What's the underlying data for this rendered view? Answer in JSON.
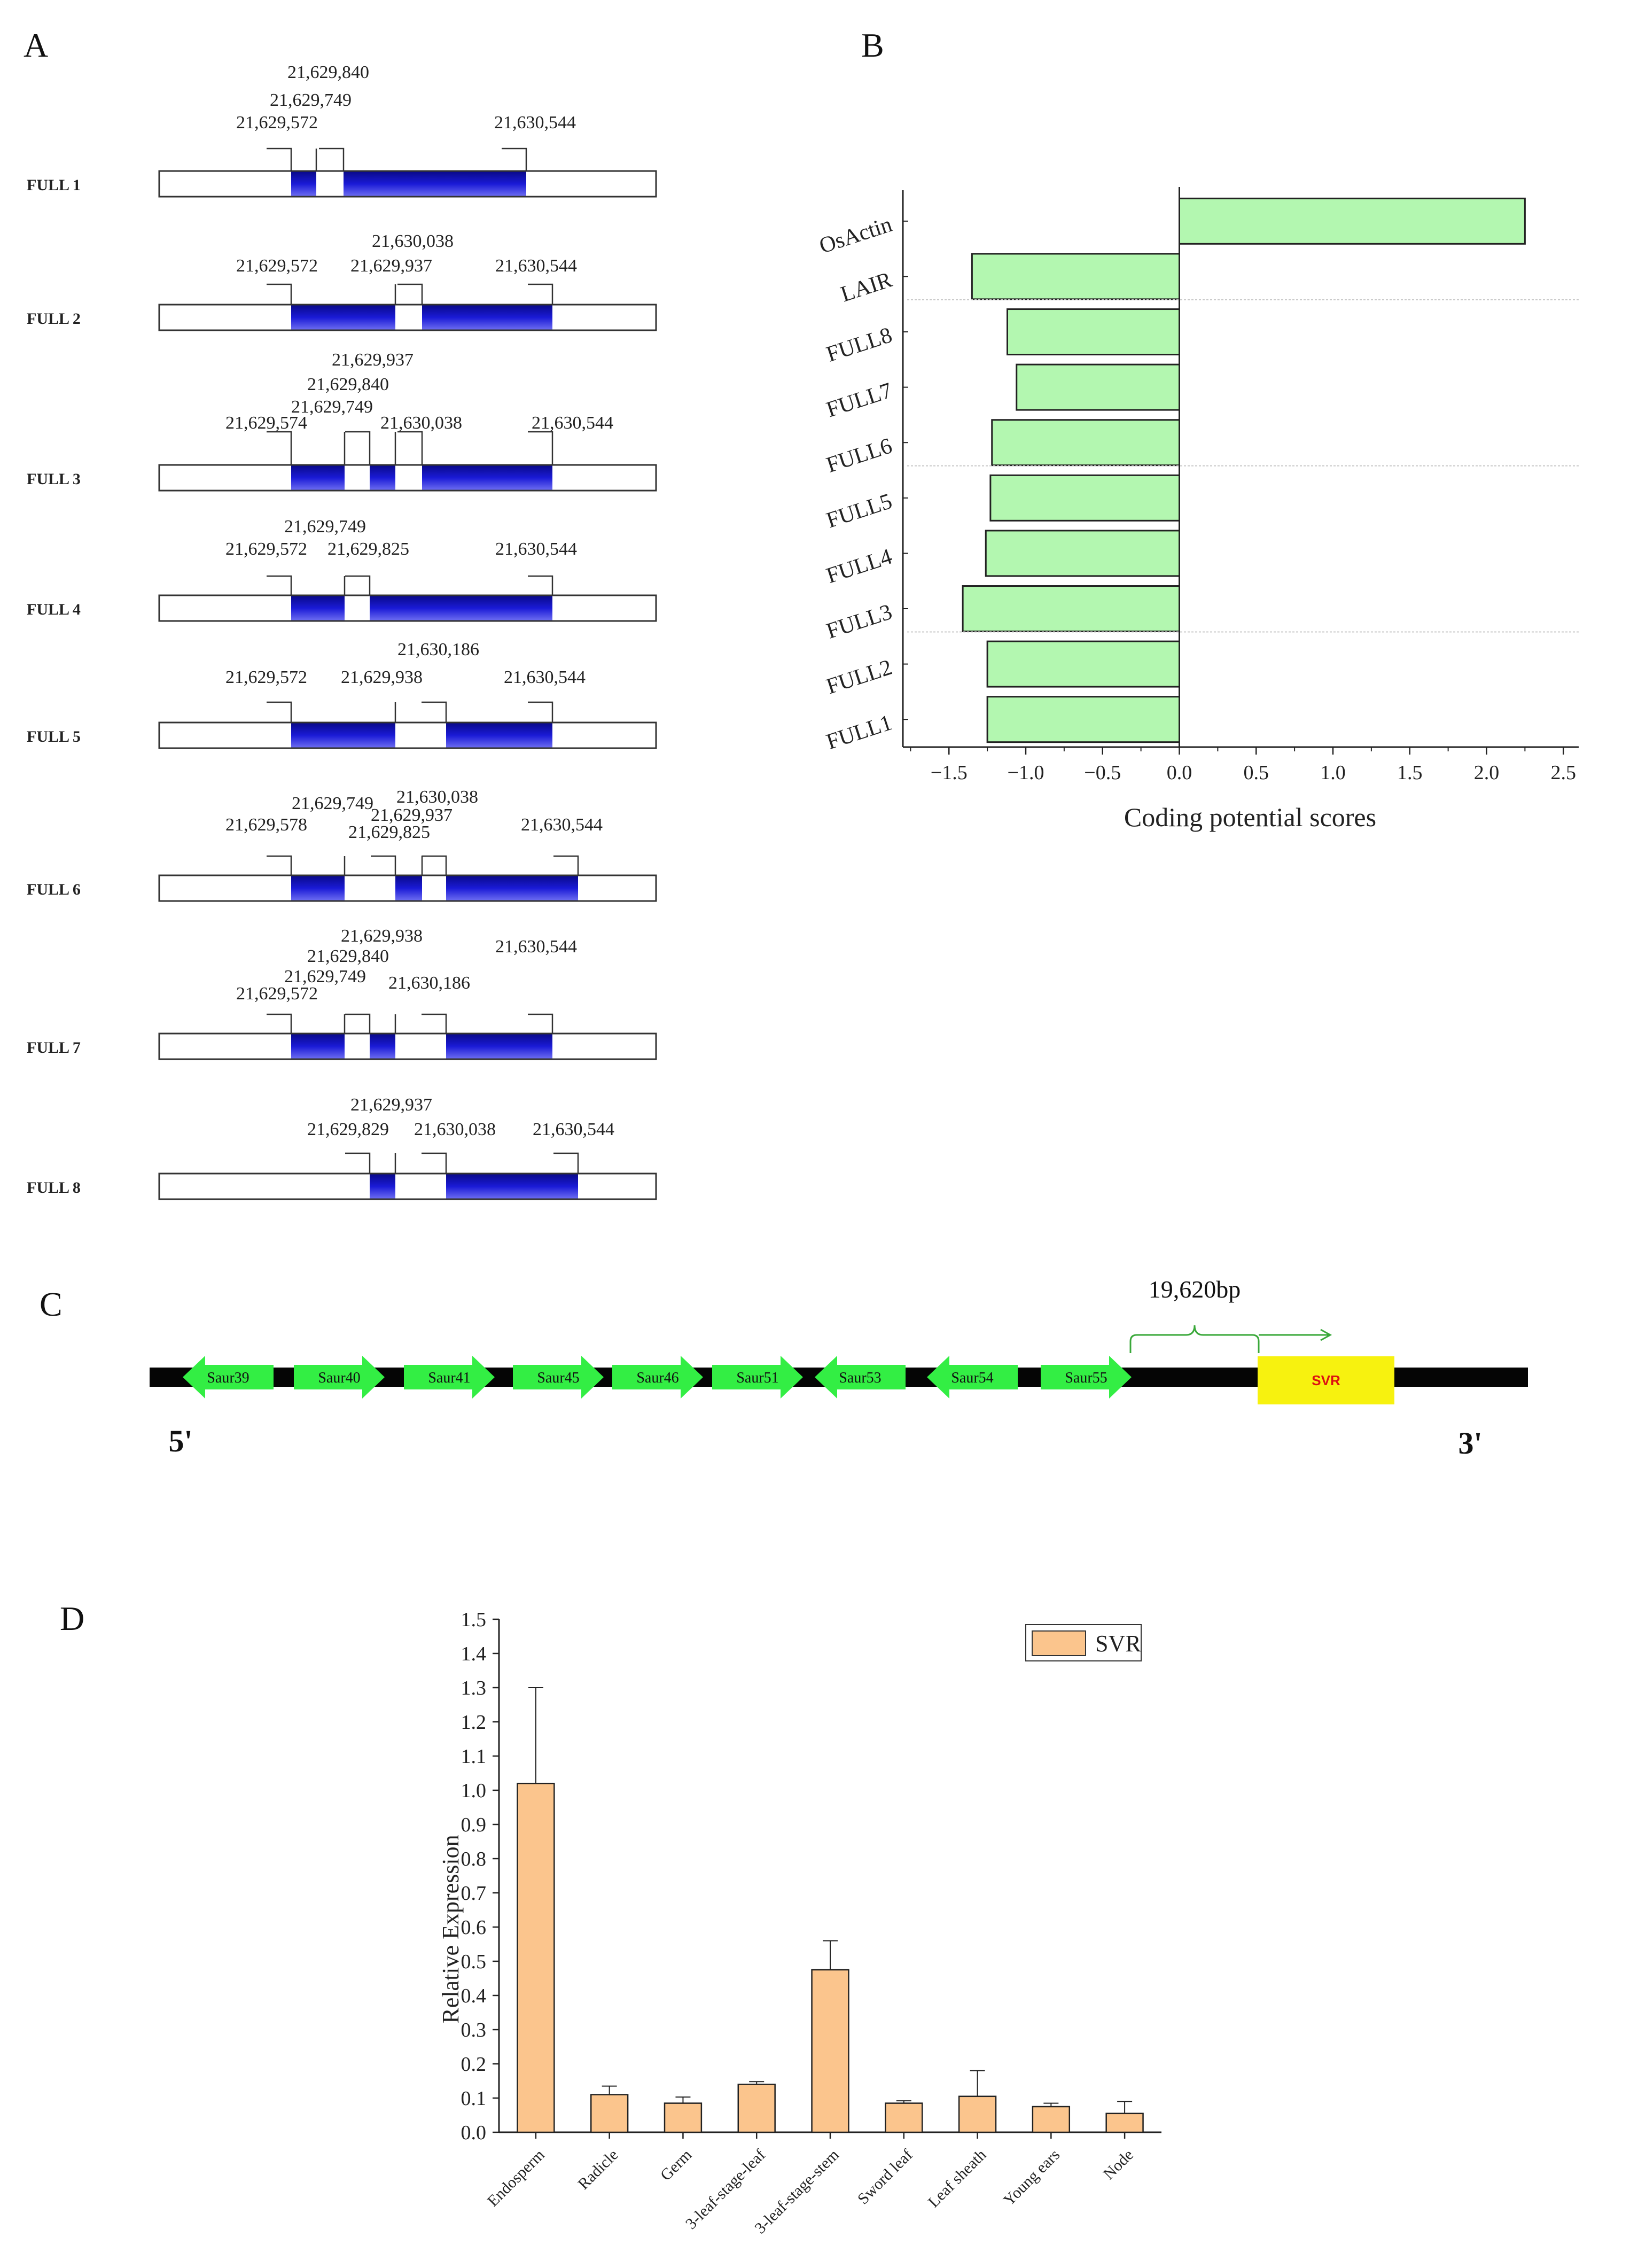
{
  "panels": {
    "a": "A",
    "b": "B",
    "c": "C",
    "d": "D"
  },
  "colors": {
    "exon": "#1a1ad6",
    "exon_dark": "#0a0a8c",
    "bar_green": "#b3f7b0",
    "arrow_green": "#33ee44",
    "svr_yellow": "#f7f20f",
    "svr_text": "#dd1111",
    "bar_orange": "#fbc58d"
  },
  "transcripts": [
    {
      "name": "FULL 1",
      "labels": [
        "21,629,840",
        "21,629,749",
        "21,629,572",
        "21,630,544"
      ]
    },
    {
      "name": "FULL 2",
      "labels": [
        "21,630,038",
        "21,629,572",
        "21,629,937",
        "21,630,544"
      ]
    },
    {
      "name": "FULL 3",
      "labels": [
        "21,629,937",
        "21,629,840",
        "21,629,749",
        "21,629,574",
        "21,630,038",
        "21,630,544"
      ]
    },
    {
      "name": "FULL 4",
      "labels": [
        "21,629,749",
        "21,629,572",
        "21,629,825",
        "21,630,544"
      ]
    },
    {
      "name": "FULL 5",
      "labels": [
        "21,630,186",
        "21,629,572",
        "21,629,938",
        "21,630,544"
      ]
    },
    {
      "name": "FULL 6",
      "labels": [
        "21,629,749",
        "21,630,038",
        "21,629,937",
        "21,629,578",
        "21,629,825",
        "21,630,544"
      ]
    },
    {
      "name": "FULL 7",
      "labels": [
        "21,629,938",
        "21,629,840",
        "21,630,544",
        "21,629,749",
        "21,629,572",
        "21,630,186"
      ]
    },
    {
      "name": "FULL 8",
      "labels": [
        "21,629,937",
        "21,629,829",
        "21,630,038",
        "21,630,544"
      ]
    }
  ],
  "chart_data": [
    {
      "type": "bar",
      "orientation": "horizontal",
      "categories": [
        "OsActin",
        "LAIR",
        "FULL8",
        "FULL7",
        "FULL6",
        "FULL5",
        "FULL4",
        "FULL3",
        "FULL2",
        "FULL1"
      ],
      "values": [
        2.25,
        -1.35,
        -1.12,
        -1.06,
        -1.22,
        -1.23,
        -1.26,
        -1.41,
        -1.25,
        -1.25
      ],
      "xlabel": "Coding potential scores",
      "xlim": [
        -1.8,
        2.6
      ],
      "xticks": [
        -1.5,
        -1.0,
        -0.5,
        0.0,
        0.5,
        1.0,
        1.5,
        2.0,
        2.5
      ],
      "xtick_labels": [
        "−1.5",
        "−1.0",
        "−0.5",
        "0.0",
        "0.5",
        "1.0",
        "1.5",
        "2.0",
        "2.5"
      ]
    },
    {
      "type": "bar",
      "categories": [
        "Endosperm",
        "Radicle",
        "Germ",
        "3-leaf-stage-leaf",
        "3-leaf-stage-stem",
        "Sword leaf",
        "Leaf sheath",
        "Young ears",
        "Node"
      ],
      "series": [
        {
          "name": "SVR",
          "values": [
            1.02,
            0.11,
            0.085,
            0.14,
            0.475,
            0.085,
            0.105,
            0.075,
            0.055
          ],
          "errors": [
            0.28,
            0.025,
            0.018,
            0.008,
            0.085,
            0.007,
            0.075,
            0.01,
            0.035
          ]
        }
      ],
      "ylabel": "Relative Expression",
      "ylim": [
        0,
        1.5
      ],
      "yticks": [
        "0.0",
        "0.1",
        "0.2",
        "0.3",
        "0.4",
        "0.5",
        "0.6",
        "0.7",
        "0.8",
        "0.9",
        "1.0",
        "1.1",
        "1.2",
        "1.3",
        "1.4",
        "1.5"
      ],
      "legend": "top-right"
    }
  ],
  "locus": {
    "genes": [
      {
        "name": "Saur39",
        "dir": "left"
      },
      {
        "name": "Saur40",
        "dir": "right"
      },
      {
        "name": "Saur41",
        "dir": "right"
      },
      {
        "name": "Saur45",
        "dir": "right"
      },
      {
        "name": "Saur46",
        "dir": "right"
      },
      {
        "name": "Saur51",
        "dir": "right"
      },
      {
        "name": "Saur53",
        "dir": "left"
      },
      {
        "name": "Saur54",
        "dir": "left"
      },
      {
        "name": "Saur55",
        "dir": "right"
      }
    ],
    "target": "SVR",
    "distance": "19,620bp",
    "five_prime": "5'",
    "three_prime": "3'"
  }
}
